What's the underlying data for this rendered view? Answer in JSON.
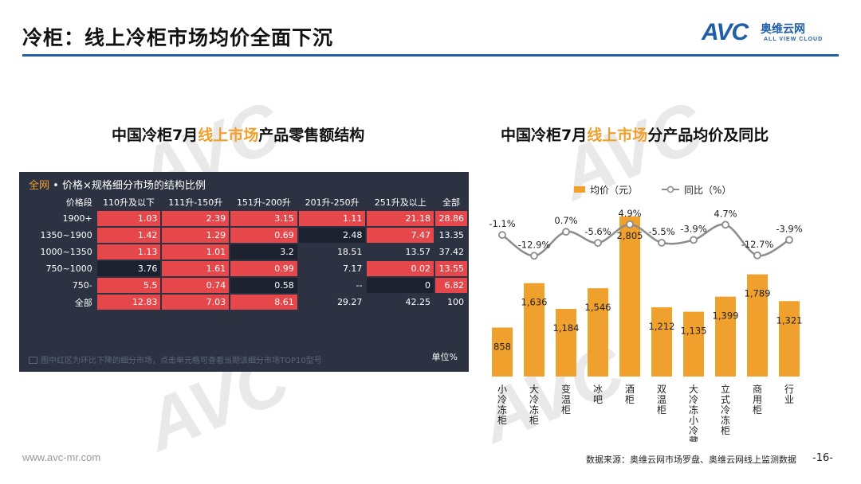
{
  "header": {
    "title": "冷柜：线上冷柜市场均价全面下沉"
  },
  "logo": {
    "text": "AVC",
    "cn": "奥维云网",
    "en": "ALL VIEW CLOUD"
  },
  "left": {
    "subtitle_pre": "中国冷柜7月",
    "subtitle_hl": "线上市场",
    "subtitle_post": "产品零售额结构",
    "panel_scope": "全网",
    "panel_title": "• 价格×规格细分市场的结构比例",
    "footnote": "图中红区为环比下降的细分市场，点击单元格可查看当期该细分市场TOP10型号",
    "unit": "单位%"
  },
  "right": {
    "subtitle_pre": "中国冷柜7月",
    "subtitle_hl": "线上市场",
    "subtitle_post": "分产品均价及同比"
  },
  "colors": {
    "red": "#e5474b",
    "dark_cell": "#1c2230",
    "panel": "#2c3241",
    "bar": "#f0a02c",
    "line": "#8c8c8c",
    "accent_blue": "#1f5fa8"
  },
  "chart_data": [
    {
      "type": "table",
      "columns": [
        "价格段",
        "110升及以下",
        "111升-150升",
        "151升-200升",
        "201升-250升",
        "251升及以上",
        "全部"
      ],
      "rows": [
        {
          "label": "1900+",
          "values": [
            "1.03",
            "2.39",
            "3.15",
            "1.11",
            "21.18",
            "28.86"
          ],
          "styles": [
            "red",
            "red",
            "red",
            "red",
            "red",
            "red"
          ]
        },
        {
          "label": "1350~1900",
          "values": [
            "1.42",
            "1.29",
            "0.69",
            "2.48",
            "7.47",
            "13.35"
          ],
          "styles": [
            "red",
            "red",
            "red",
            "dark",
            "red",
            "none"
          ]
        },
        {
          "label": "1000~1350",
          "values": [
            "1.13",
            "1.01",
            "3.2",
            "18.51",
            "13.57",
            "37.42"
          ],
          "styles": [
            "red",
            "red",
            "dark",
            "none",
            "none",
            "none"
          ]
        },
        {
          "label": "750~1000",
          "values": [
            "3.76",
            "1.61",
            "0.99",
            "7.17",
            "0.02",
            "13.55"
          ],
          "styles": [
            "dark",
            "red",
            "red",
            "none",
            "red",
            "red"
          ]
        },
        {
          "label": "750-",
          "values": [
            "5.5",
            "0.74",
            "0.58",
            "--",
            "0",
            "6.82"
          ],
          "styles": [
            "red",
            "red",
            "dark",
            "none",
            "dark",
            "red"
          ]
        },
        {
          "label": "全部",
          "values": [
            "12.83",
            "7.03",
            "8.61",
            "29.27",
            "42.25",
            "100"
          ],
          "styles": [
            "red",
            "red",
            "red",
            "none",
            "none",
            "none"
          ]
        }
      ]
    },
    {
      "type": "bar",
      "categories": [
        "小冷冻柜",
        "大冷冻柜",
        "变温柜",
        "冰吧",
        "酒柜",
        "双温柜",
        "大冷冻小冷藏",
        "立式冷冻柜",
        "商用柜",
        "行业"
      ],
      "series": [
        {
          "name": "均价（元）",
          "type": "bar",
          "values": [
            858,
            1636,
            1184,
            1546,
            2805,
            1212,
            1135,
            1399,
            1789,
            1321
          ],
          "labels": [
            "858",
            "1,636",
            "1,184",
            "1,546",
            "2,805",
            "1,212",
            "1,135",
            "1,399",
            "1,789",
            "1,321"
          ]
        },
        {
          "name": "同比（%）",
          "type": "line",
          "values": [
            -1.1,
            -12.9,
            0.7,
            -5.6,
            4.9,
            -5.5,
            -3.9,
            4.7,
            -12.7,
            -3.9
          ],
          "labels": [
            "-1.1%",
            "-12.9%",
            "0.7%",
            "-5.6%",
            "4.9%",
            "-5.5%",
            "-3.9%",
            "4.7%",
            "-12.7%",
            "-3.9%"
          ]
        }
      ],
      "legend": "top",
      "grid": false,
      "bar_ylim": [
        0,
        2900
      ],
      "line_ylim": [
        -20,
        8
      ]
    }
  ],
  "footer": {
    "website": "www.avc-mr.com",
    "source": "数据来源：奥维云网市场罗盘、奥维云网线上监测数据",
    "page": "-16-"
  }
}
